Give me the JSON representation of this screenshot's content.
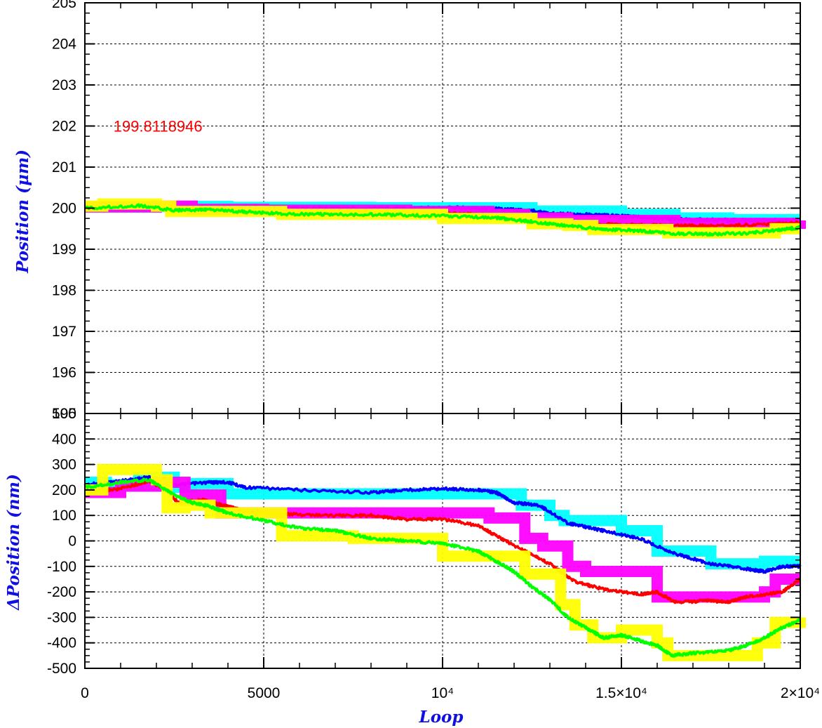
{
  "chart_data": [
    {
      "type": "line",
      "title": "",
      "xlabel": "",
      "ylabel": "Position (μm)",
      "xlim": [
        0,
        20000
      ],
      "ylim": [
        195,
        205
      ],
      "grid": true,
      "legend": "none",
      "x_ticks": [
        {
          "value": 0,
          "label": ""
        },
        {
          "value": 5000,
          "label": ""
        },
        {
          "value": 10000,
          "label": ""
        },
        {
          "value": 15000,
          "label": ""
        },
        {
          "value": 20000,
          "label": ""
        }
      ],
      "y_ticks": [
        {
          "value": 195,
          "label": "195"
        },
        {
          "value": 196,
          "label": "196"
        },
        {
          "value": 197,
          "label": "197"
        },
        {
          "value": 198,
          "label": "198"
        },
        {
          "value": 199,
          "label": "199"
        },
        {
          "value": 200,
          "label": "200"
        },
        {
          "value": 201,
          "label": "201"
        },
        {
          "value": 202,
          "label": "202"
        },
        {
          "value": 203,
          "label": "203"
        },
        {
          "value": 204,
          "label": "204"
        },
        {
          "value": 205,
          "label": "205"
        }
      ],
      "annotations": [
        {
          "text": "199.8118946",
          "x": 800,
          "y": 202,
          "color": "#ff0000"
        }
      ],
      "series": [
        {
          "color": "#00ffff",
          "style": "stepped",
          "x": [
            0,
            2000,
            4000,
            8000,
            11000,
            12500,
            15000,
            16500,
            18000,
            20000
          ],
          "y": [
            200.03,
            200.04,
            200.02,
            200.01,
            200.01,
            199.93,
            199.85,
            199.76,
            199.72,
            199.72
          ]
        },
        {
          "color": "#0000ff",
          "style": "line",
          "x": [
            0,
            1500,
            2500,
            4000,
            6000,
            8000,
            9000,
            10500,
            11500,
            12500,
            13000,
            14000,
            15000,
            16000,
            17000,
            18000,
            19000,
            20000
          ],
          "y": [
            200.02,
            200.05,
            200.01,
            200.03,
            200.0,
            200.0,
            200.0,
            200.01,
            199.99,
            199.94,
            199.87,
            199.85,
            199.81,
            199.76,
            199.72,
            199.71,
            199.7,
            199.71
          ]
        },
        {
          "color": "#ff00ff",
          "style": "stepped",
          "x": [
            0,
            2000,
            3000,
            5000,
            9000,
            11300,
            12300,
            13500,
            16500,
            19000,
            20000
          ],
          "y": [
            200.03,
            200.05,
            199.97,
            199.95,
            199.92,
            199.85,
            199.76,
            199.7,
            199.63,
            199.63,
            199.7
          ]
        },
        {
          "color": "#ff0000",
          "style": "line",
          "x": [
            0,
            1500,
            2500,
            3500,
            5000,
            6500,
            8000,
            10000,
            11500,
            12500,
            13500,
            15000,
            16500,
            17500,
            19000,
            20000
          ],
          "y": [
            200.0,
            200.04,
            199.97,
            199.96,
            199.91,
            199.9,
            199.89,
            199.88,
            199.82,
            199.7,
            199.63,
            199.6,
            199.57,
            199.57,
            199.6,
            199.65
          ]
        },
        {
          "color": "#ffff00",
          "style": "stepped",
          "x": [
            0,
            500,
            2000,
            2400,
            5500,
            7000,
            10000,
            11500,
            12500,
            13500,
            14200,
            16300,
            18000,
            19300,
            20000
          ],
          "y": [
            200.05,
            200.1,
            200.05,
            199.92,
            199.85,
            199.85,
            199.75,
            199.75,
            199.62,
            199.58,
            199.48,
            199.4,
            199.4,
            199.5,
            199.5
          ]
        },
        {
          "color": "#00ff00",
          "style": "line",
          "x": [
            0,
            1500,
            2500,
            3500,
            4500,
            5500,
            7000,
            8500,
            10000,
            11500,
            12500,
            13500,
            14500,
            15500,
            16500,
            17500,
            18500,
            19500,
            20000
          ],
          "y": [
            200.0,
            200.06,
            199.95,
            199.96,
            199.91,
            199.86,
            199.85,
            199.84,
            199.81,
            199.76,
            199.67,
            199.57,
            199.48,
            199.45,
            199.38,
            199.37,
            199.39,
            199.48,
            199.53
          ]
        }
      ]
    },
    {
      "type": "line",
      "title": "",
      "xlabel": "Loop",
      "ylabel": "ΔPosition (nm)",
      "xlim": [
        0,
        20000
      ],
      "ylim": [
        -500,
        500
      ],
      "grid": true,
      "legend": "none",
      "x_ticks": [
        {
          "value": 0,
          "label": "0"
        },
        {
          "value": 5000,
          "label": "5000"
        },
        {
          "value": 10000,
          "label": "10⁴"
        },
        {
          "value": 15000,
          "label": "1.5×10⁴"
        },
        {
          "value": 20000,
          "label": "2×10⁴"
        }
      ],
      "y_ticks": [
        {
          "value": -500,
          "label": "-500"
        },
        {
          "value": -400,
          "label": "-400"
        },
        {
          "value": -300,
          "label": "-300"
        },
        {
          "value": -200,
          "label": "-200"
        },
        {
          "value": -100,
          "label": "-100"
        },
        {
          "value": 0,
          "label": "0"
        },
        {
          "value": 100,
          "label": "100"
        },
        {
          "value": 200,
          "label": "200"
        },
        {
          "value": 300,
          "label": "300"
        },
        {
          "value": 400,
          "label": "400"
        },
        {
          "value": 500,
          "label": "500"
        }
      ],
      "series": [
        {
          "color": "#00ffff",
          "style": "stepped",
          "x": [
            0,
            600,
            1500,
            2500,
            3000,
            4000,
            11500,
            12200,
            13000,
            13400,
            15000,
            16000,
            17500,
            18500,
            19000,
            20000
          ],
          "y": [
            230,
            220,
            250,
            210,
            225,
            185,
            185,
            140,
            100,
            80,
            40,
            -40,
            -90,
            -90,
            -80,
            -80
          ]
        },
        {
          "color": "#0000ff",
          "style": "line",
          "x": [
            0,
            1000,
            1800,
            2500,
            3500,
            4000,
            4500,
            6000,
            8000,
            9000,
            10000,
            11000,
            11500,
            12000,
            12700,
            13500,
            14500,
            15500,
            16500,
            17500,
            18500,
            19000,
            19500,
            20000
          ],
          "y": [
            220,
            235,
            250,
            220,
            230,
            230,
            210,
            200,
            190,
            200,
            205,
            200,
            190,
            150,
            140,
            70,
            40,
            10,
            -50,
            -90,
            -110,
            -120,
            -100,
            -100
          ]
        },
        {
          "color": "#ff00ff",
          "style": "stepped",
          "x": [
            0,
            1000,
            2000,
            2800,
            3000,
            3800,
            9000,
            11300,
            12300,
            12800,
            13500,
            14000,
            16000,
            17000,
            19000,
            19300,
            20000
          ],
          "y": [
            190,
            215,
            230,
            160,
            180,
            110,
            110,
            90,
            10,
            -20,
            -100,
            -120,
            -220,
            -220,
            -200,
            -150,
            -150
          ]
        },
        {
          "color": "#ff0000",
          "style": "line",
          "x": [
            0,
            1000,
            1800,
            2300,
            2600,
            3300,
            4000,
            4500,
            5500,
            7000,
            8000,
            9000,
            10000,
            11000,
            11500,
            12300,
            13000,
            13700,
            14500,
            15500,
            16000,
            16500,
            17500,
            18000,
            18500,
            19500,
            20000
          ],
          "y": [
            190,
            205,
            235,
            200,
            150,
            160,
            135,
            115,
            105,
            100,
            100,
            85,
            85,
            60,
            20,
            -40,
            -90,
            -160,
            -190,
            -210,
            -200,
            -240,
            -235,
            -240,
            -220,
            -200,
            -150
          ]
        },
        {
          "color": "#ffff00",
          "style": "stepped",
          "x": [
            0,
            500,
            2000,
            2300,
            2800,
            3500,
            5500,
            7500,
            9000,
            10000,
            11500,
            12300,
            13300,
            13700,
            14200,
            15000,
            16000,
            16300,
            18000,
            18800,
            19300,
            20000
          ],
          "y": [
            200,
            280,
            240,
            130,
            140,
            110,
            20,
            10,
            10,
            -60,
            -60,
            -130,
            -250,
            -330,
            -380,
            -350,
            -400,
            -450,
            -450,
            -400,
            -320,
            -300
          ]
        },
        {
          "color": "#00ff00",
          "style": "line",
          "x": [
            0,
            1000,
            1800,
            2500,
            3000,
            3500,
            4000,
            5000,
            6000,
            7000,
            8000,
            9000,
            10000,
            11000,
            11500,
            12000,
            12500,
            13000,
            13500,
            14000,
            14500,
            15000,
            15500,
            16000,
            16400,
            17000,
            18000,
            18500,
            19000,
            19500,
            20000
          ],
          "y": [
            210,
            230,
            240,
            180,
            150,
            135,
            110,
            80,
            50,
            40,
            10,
            0,
            -10,
            -40,
            -80,
            -120,
            -180,
            -230,
            -300,
            -340,
            -380,
            -370,
            -390,
            -410,
            -450,
            -440,
            -430,
            -410,
            -380,
            -340,
            -310
          ]
        }
      ]
    }
  ]
}
